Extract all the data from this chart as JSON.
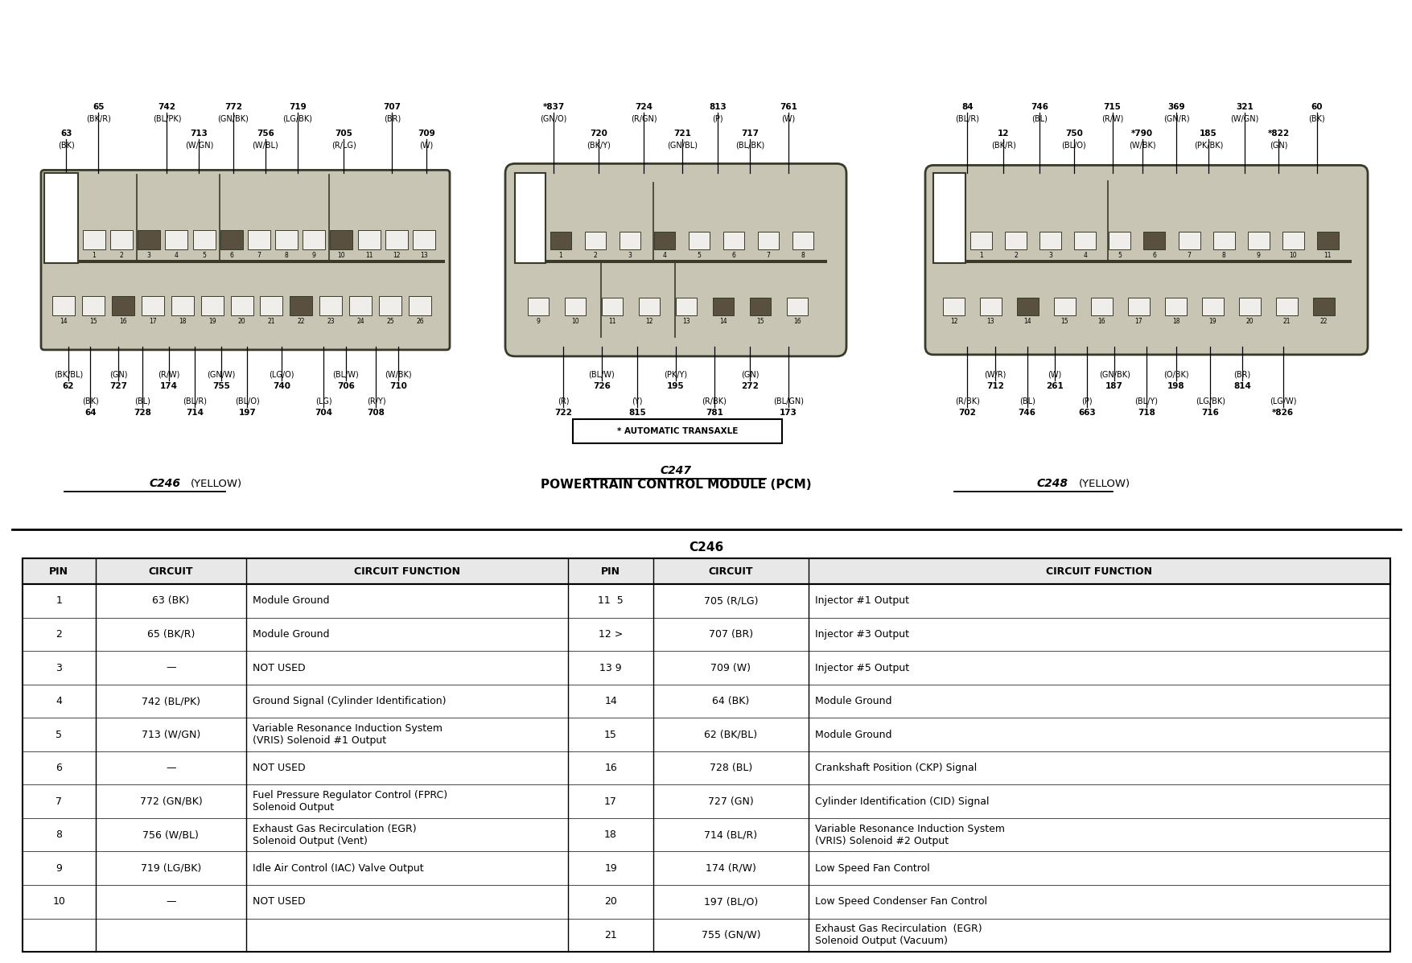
{
  "title": "POWERTRAIN CONTROL MODULE (PCM)",
  "background_color": "#ffffff",
  "connector_fill": "#c8c5b5",
  "connector_edge": "#3a3a2a",
  "pin_fill_light": "#f0eeea",
  "pin_fill_dark": "#5a5040",
  "table_title": "C246",
  "header_row": [
    "PIN",
    "CIRCUIT",
    "CIRCUIT FUNCTION",
    "PIN",
    "CIRCUIT",
    "CIRCUIT FUNCTION"
  ],
  "table_rows": [
    [
      "1",
      "63 (BK)",
      "Module Ground",
      "11  5",
      "705 (R/LG)",
      "Injector #1 Output"
    ],
    [
      "2",
      "65 (BK/R)",
      "Module Ground",
      "12 >",
      "707 (BR)",
      "Injector #3 Output"
    ],
    [
      "3",
      "—",
      "NOT USED",
      "13 9",
      "709 (W)",
      "Injector #5 Output"
    ],
    [
      "4",
      "742 (BL/PK)",
      "Ground Signal (Cylinder Identification)",
      "14",
      "64 (BK)",
      "Module Ground"
    ],
    [
      "5",
      "713 (W/GN)",
      "Variable Resonance Induction System\n(VRIS) Solenoid #1 Output",
      "15",
      "62 (BK/BL)",
      "Module Ground"
    ],
    [
      "6",
      "—",
      "NOT USED",
      "16",
      "728 (BL)",
      "Crankshaft Position (CKP) Signal"
    ],
    [
      "7",
      "772 (GN/BK)",
      "Fuel Pressure Regulator Control (FPRC)\nSolenoid Output",
      "17",
      "727 (GN)",
      "Cylinder Identification (CID) Signal"
    ],
    [
      "8",
      "756 (W/BL)",
      "Exhaust Gas Recirculation (EGR)\nSolenoid Output (Vent)",
      "18",
      "714 (BL/R)",
      "Variable Resonance Induction System\n(VRIS) Solenoid #2 Output"
    ],
    [
      "9",
      "719 (LG/BK)",
      "Idle Air Control (IAC) Valve Output",
      "19",
      "174 (R/W)",
      "Low Speed Fan Control"
    ],
    [
      "10",
      "—",
      "NOT USED",
      "20",
      "197 (BL/O)",
      "Low Speed Condenser Fan Control"
    ],
    [
      "",
      "",
      "",
      "21",
      "755 (GN/W)",
      "Exhaust Gas Recirculation  (EGR)\nSolenoid Output (Vacuum)"
    ]
  ],
  "c246_top_far": [
    [
      0.135,
      "65",
      "(BK/R)"
    ],
    [
      0.305,
      "742",
      "(BL/PK)"
    ],
    [
      0.47,
      "772",
      "(GN/BK)"
    ],
    [
      0.63,
      "719",
      "(LG/BK)"
    ],
    [
      0.865,
      "707",
      "(BR)"
    ]
  ],
  "c246_top_near": [
    [
      0.055,
      "63",
      "(BK)"
    ],
    [
      0.385,
      "713",
      "(W/GN)"
    ],
    [
      0.55,
      "756",
      "(W/BL)"
    ],
    [
      0.745,
      "705",
      "(R/LG)"
    ],
    [
      0.95,
      "709",
      "(W)"
    ]
  ],
  "c246_bot_far": [
    [
      0.115,
      "64",
      "(BK)"
    ],
    [
      0.245,
      "728",
      "(BL)"
    ],
    [
      0.375,
      "714",
      "(BL/R)"
    ],
    [
      0.505,
      "197",
      "(BL/O)"
    ],
    [
      0.695,
      "704",
      "(LG)"
    ],
    [
      0.825,
      "708",
      "(R/Y)"
    ]
  ],
  "c246_bot_near": [
    [
      0.06,
      "62",
      "(BK/BL)"
    ],
    [
      0.185,
      "727",
      "(GN)"
    ],
    [
      0.31,
      "174",
      "(R/W)"
    ],
    [
      0.44,
      "755",
      "(GN/W)"
    ],
    [
      0.59,
      "740",
      "(LG/O)"
    ],
    [
      0.75,
      "706",
      "(BL/W)"
    ],
    [
      0.88,
      "710",
      "(W/BK)"
    ]
  ],
  "c247_top_far": [
    [
      0.12,
      "*837",
      "(GN/O)"
    ],
    [
      0.4,
      "724",
      "(R/GN)"
    ],
    [
      0.63,
      "813",
      "(P)"
    ],
    [
      0.85,
      "761",
      "(W)"
    ]
  ],
  "c247_top_near": [
    [
      0.26,
      "720",
      "(BK/Y)"
    ],
    [
      0.52,
      "721",
      "(GN/BL)"
    ],
    [
      0.73,
      "717",
      "(BL/BK)"
    ]
  ],
  "c247_bot_far": [
    [
      0.15,
      "722",
      "(R)"
    ],
    [
      0.38,
      "815",
      "(Y)"
    ],
    [
      0.62,
      "781",
      "(R/BK)"
    ],
    [
      0.85,
      "173",
      "(BL/GN)"
    ]
  ],
  "c247_bot_near": [
    [
      0.27,
      "726",
      "(BL/W)"
    ],
    [
      0.5,
      "195",
      "(PK/Y)"
    ],
    [
      0.73,
      "272",
      "(GN)"
    ]
  ],
  "c248_top_far": [
    [
      0.08,
      "84",
      "(BL/R)"
    ],
    [
      0.25,
      "746",
      "(BL)"
    ],
    [
      0.42,
      "715",
      "(R/W)"
    ],
    [
      0.57,
      "369",
      "(GN/R)"
    ],
    [
      0.73,
      "321",
      "(W/GN)"
    ],
    [
      0.9,
      "60",
      "(BK)"
    ]
  ],
  "c248_top_near": [
    [
      0.165,
      "12",
      "(BK/R)"
    ],
    [
      0.33,
      "750",
      "(BL/O)"
    ],
    [
      0.49,
      "*790",
      "(W/BK)"
    ],
    [
      0.645,
      "185",
      "(PK/BK)"
    ],
    [
      0.81,
      "*822",
      "(GN)"
    ]
  ],
  "c248_bot_far": [
    [
      0.08,
      "702",
      "(R/BK)"
    ],
    [
      0.22,
      "746",
      "(BL)"
    ],
    [
      0.36,
      "663",
      "(P)"
    ],
    [
      0.5,
      "718",
      "(BL/Y)"
    ],
    [
      0.65,
      "716",
      "(LG/BK)"
    ],
    [
      0.82,
      "*826",
      "(LG/W)"
    ]
  ],
  "c248_bot_near": [
    [
      0.145,
      "712",
      "(W/R)"
    ],
    [
      0.285,
      "261",
      "(W)"
    ],
    [
      0.425,
      "187",
      "(GN/BK)"
    ],
    [
      0.57,
      "198",
      "(O/BK)"
    ],
    [
      0.725,
      "814",
      "(BR)"
    ]
  ]
}
